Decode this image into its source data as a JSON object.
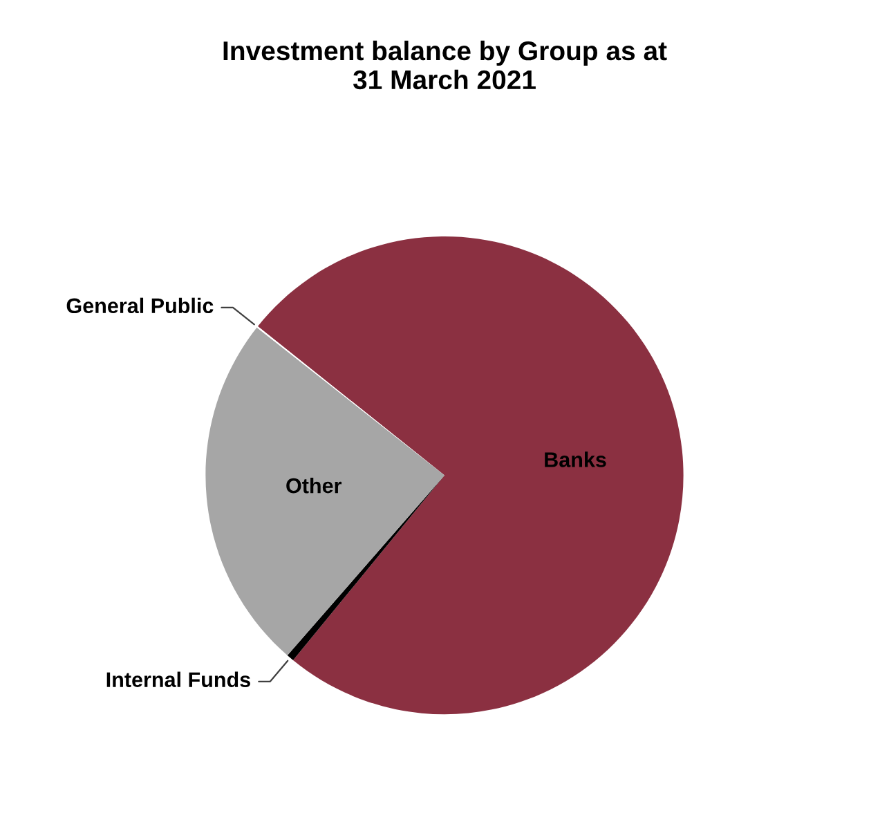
{
  "chart_data": {
    "type": "pie",
    "title": "Investment balance by Group as at\n31 March 2021",
    "categories": [
      "Banks",
      "Internal Funds",
      "Other",
      "General Public"
    ],
    "values": [
      75.2,
      0.5,
      24.2,
      0.1
    ],
    "colors": [
      "#8b3041",
      "#000000",
      "#a6a6a6",
      "#ffffff"
    ],
    "legend": false
  }
}
